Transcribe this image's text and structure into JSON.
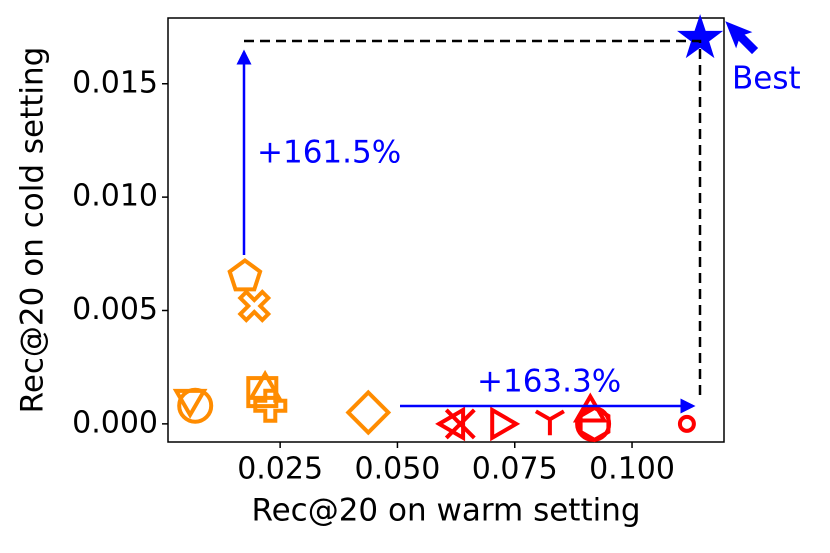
{
  "chart_data": {
    "type": "scatter",
    "xlabel": "Rec@20 on warm setting",
    "ylabel": "Rec@20 on cold setting",
    "xlim": [
      0.0011,
      0.1196
    ],
    "ylim": [
      -0.0008,
      0.0179
    ],
    "xticks": [
      0.025,
      {
        "value": 0.05,
        "label": "0.050"
      },
      0.075,
      {
        "value": 0.1,
        "label": "0.100"
      }
    ],
    "yticks": [
      {
        "value": 0,
        "label": "0.000"
      },
      0.005,
      {
        "value": 0.01,
        "label": "0.010"
      },
      0.015
    ],
    "annotations": [
      "+161.5%",
      "+163.3%",
      "Best"
    ],
    "points": [
      {
        "x": 0.0175,
        "y": 0.0065,
        "marker": "pentagon",
        "color": "#ff8c00"
      },
      {
        "x": 0.0195,
        "y": 0.0052,
        "marker": "X",
        "color": "#ff8c00"
      },
      {
        "x": 0.0058,
        "y": 0.0011,
        "marker": "triangle-down",
        "color": "#ff8c00"
      },
      {
        "x": 0.0069,
        "y": 0.0008,
        "marker": "circle",
        "color": "#ff8c00"
      },
      {
        "x": 0.0212,
        "y": 0.0014,
        "marker": "square",
        "color": "#ff8c00"
      },
      {
        "x": 0.0218,
        "y": 0.0015,
        "marker": "triangle-up",
        "color": "#ff8c00"
      },
      {
        "x": 0.0229,
        "y": 0.0008,
        "marker": "plus",
        "color": "#ff8c00"
      },
      {
        "x": 0.0438,
        "y": 0.0005,
        "marker": "diamond",
        "color": "#ff8c00"
      },
      {
        "x": 0.0623,
        "y": 0,
        "marker": "triangle-left",
        "color": "#ff0000"
      },
      {
        "x": 0.0634,
        "y": 0,
        "marker": "x",
        "color": "#ff0000"
      },
      {
        "x": 0.0719,
        "y": 0,
        "marker": "triangle-right",
        "color": "#ff0000"
      },
      {
        "x": 0.0825,
        "y": 0.0002,
        "marker": "tri",
        "color": "#ff0000"
      },
      {
        "x": 0.0911,
        "y": 0.0005,
        "marker": "triangle-up",
        "color": "#ff0000"
      },
      {
        "x": 0.0917,
        "y": 0,
        "marker": "circle",
        "color": "#ff0000"
      },
      {
        "x": 0.092,
        "y": 0,
        "marker": "hexagon",
        "color": "#ff0000"
      },
      {
        "x": 0.1117,
        "y": 0,
        "marker": "small-circle",
        "color": "#ff0000"
      },
      {
        "x": 0.1145,
        "y": 0.017,
        "marker": "star",
        "color": "#0000ff"
      }
    ]
  }
}
